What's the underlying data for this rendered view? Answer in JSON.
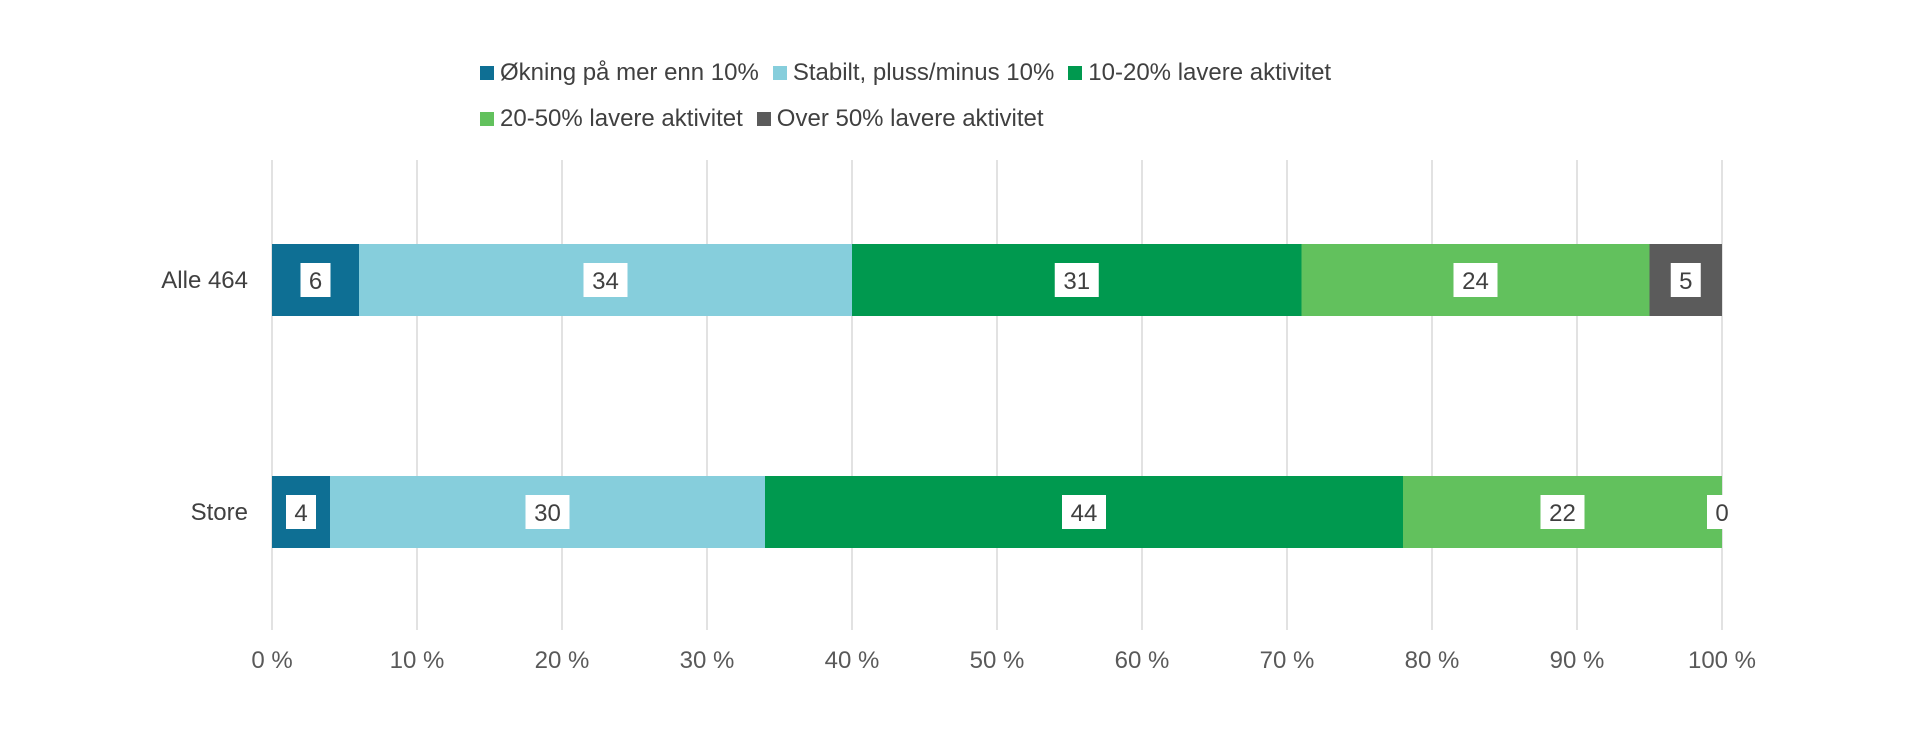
{
  "chart_data": {
    "type": "bar",
    "orientation": "horizontal",
    "stacked": "percent",
    "categories": [
      "Alle 464",
      "Store"
    ],
    "series": [
      {
        "name": "Økning på mer enn 10%",
        "color": "#0e6f94",
        "values": [
          6,
          4
        ],
        "labels": [
          "6",
          "4"
        ]
      },
      {
        "name": "Stabilt, pluss/minus 10%",
        "color": "#86cedc",
        "values": [
          34,
          30
        ],
        "labels": [
          "34",
          "30"
        ]
      },
      {
        "name": "10-20% lavere aktivitet",
        "color": "#00994f",
        "values": [
          31,
          44
        ],
        "labels": [
          "31",
          "44"
        ]
      },
      {
        "name": "20-50% lavere aktivitet",
        "color": "#62c15d",
        "values": [
          24,
          22
        ],
        "labels": [
          "24",
          "22"
        ]
      },
      {
        "name": "Over 50% lavere aktivitet",
        "color": "#5b5b5b",
        "values": [
          5,
          0
        ],
        "labels": [
          "5",
          "0"
        ]
      }
    ],
    "xlim": [
      0,
      100
    ],
    "xticks": [
      "0 %",
      "10 %",
      "20 %",
      "30 %",
      "40 %",
      "50 %",
      "60 %",
      "70 %",
      "80 %",
      "90 %",
      "100 %"
    ],
    "grid": true,
    "legend_position": "top"
  }
}
